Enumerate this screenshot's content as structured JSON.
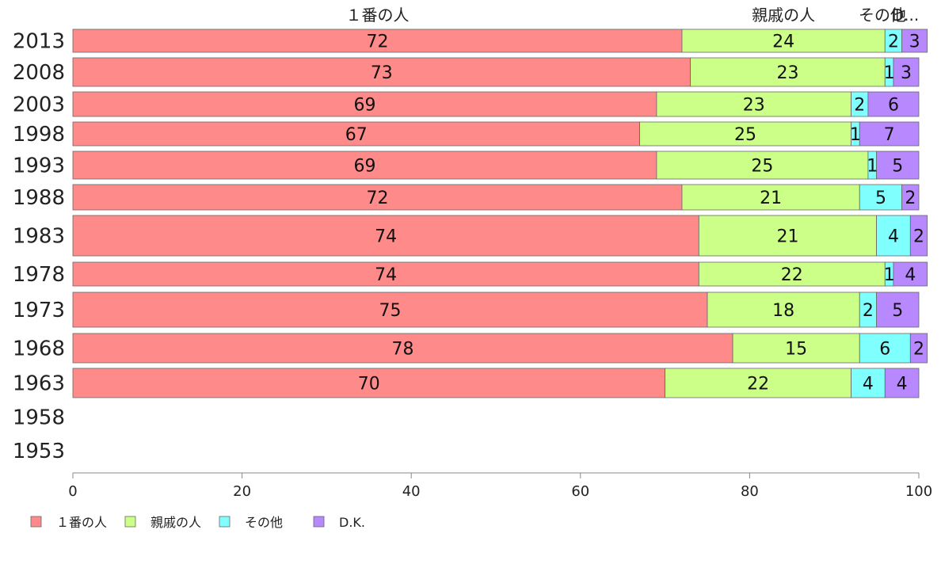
{
  "chart_data": {
    "type": "bar",
    "orientation": "horizontal",
    "stacked": true,
    "title": "",
    "xlabel": "",
    "ylabel": "",
    "xlim": [
      0,
      100
    ],
    "x_ticks": [
      0,
      20,
      40,
      60,
      80,
      100
    ],
    "grid": false,
    "legend_position": "bottom-left",
    "categories": [
      "2013",
      "2008",
      "2003",
      "1998",
      "1993",
      "1988",
      "1983",
      "1978",
      "1973",
      "1968",
      "1963",
      "1958",
      "1953"
    ],
    "series": [
      {
        "name": "１番の人",
        "color": "#ff8a8a",
        "values": [
          72,
          73,
          69,
          67,
          69,
          72,
          74,
          74,
          75,
          78,
          70,
          null,
          null
        ]
      },
      {
        "name": "親戚の人",
        "color": "#ccff88",
        "values": [
          24,
          23,
          23,
          25,
          25,
          21,
          21,
          22,
          18,
          15,
          22,
          null,
          null
        ]
      },
      {
        "name": "その他",
        "color": "#80ffff",
        "values": [
          2,
          1,
          2,
          1,
          1,
          5,
          4,
          1,
          2,
          6,
          4,
          null,
          null
        ]
      },
      {
        "name": "D.K.",
        "color": "#b888ff",
        "values": [
          3,
          3,
          6,
          7,
          5,
          2,
          2,
          4,
          5,
          2,
          4,
          null,
          null
        ]
      }
    ],
    "header_labels": [
      "１番の人",
      "親戚の人",
      "その他",
      "D..."
    ]
  }
}
